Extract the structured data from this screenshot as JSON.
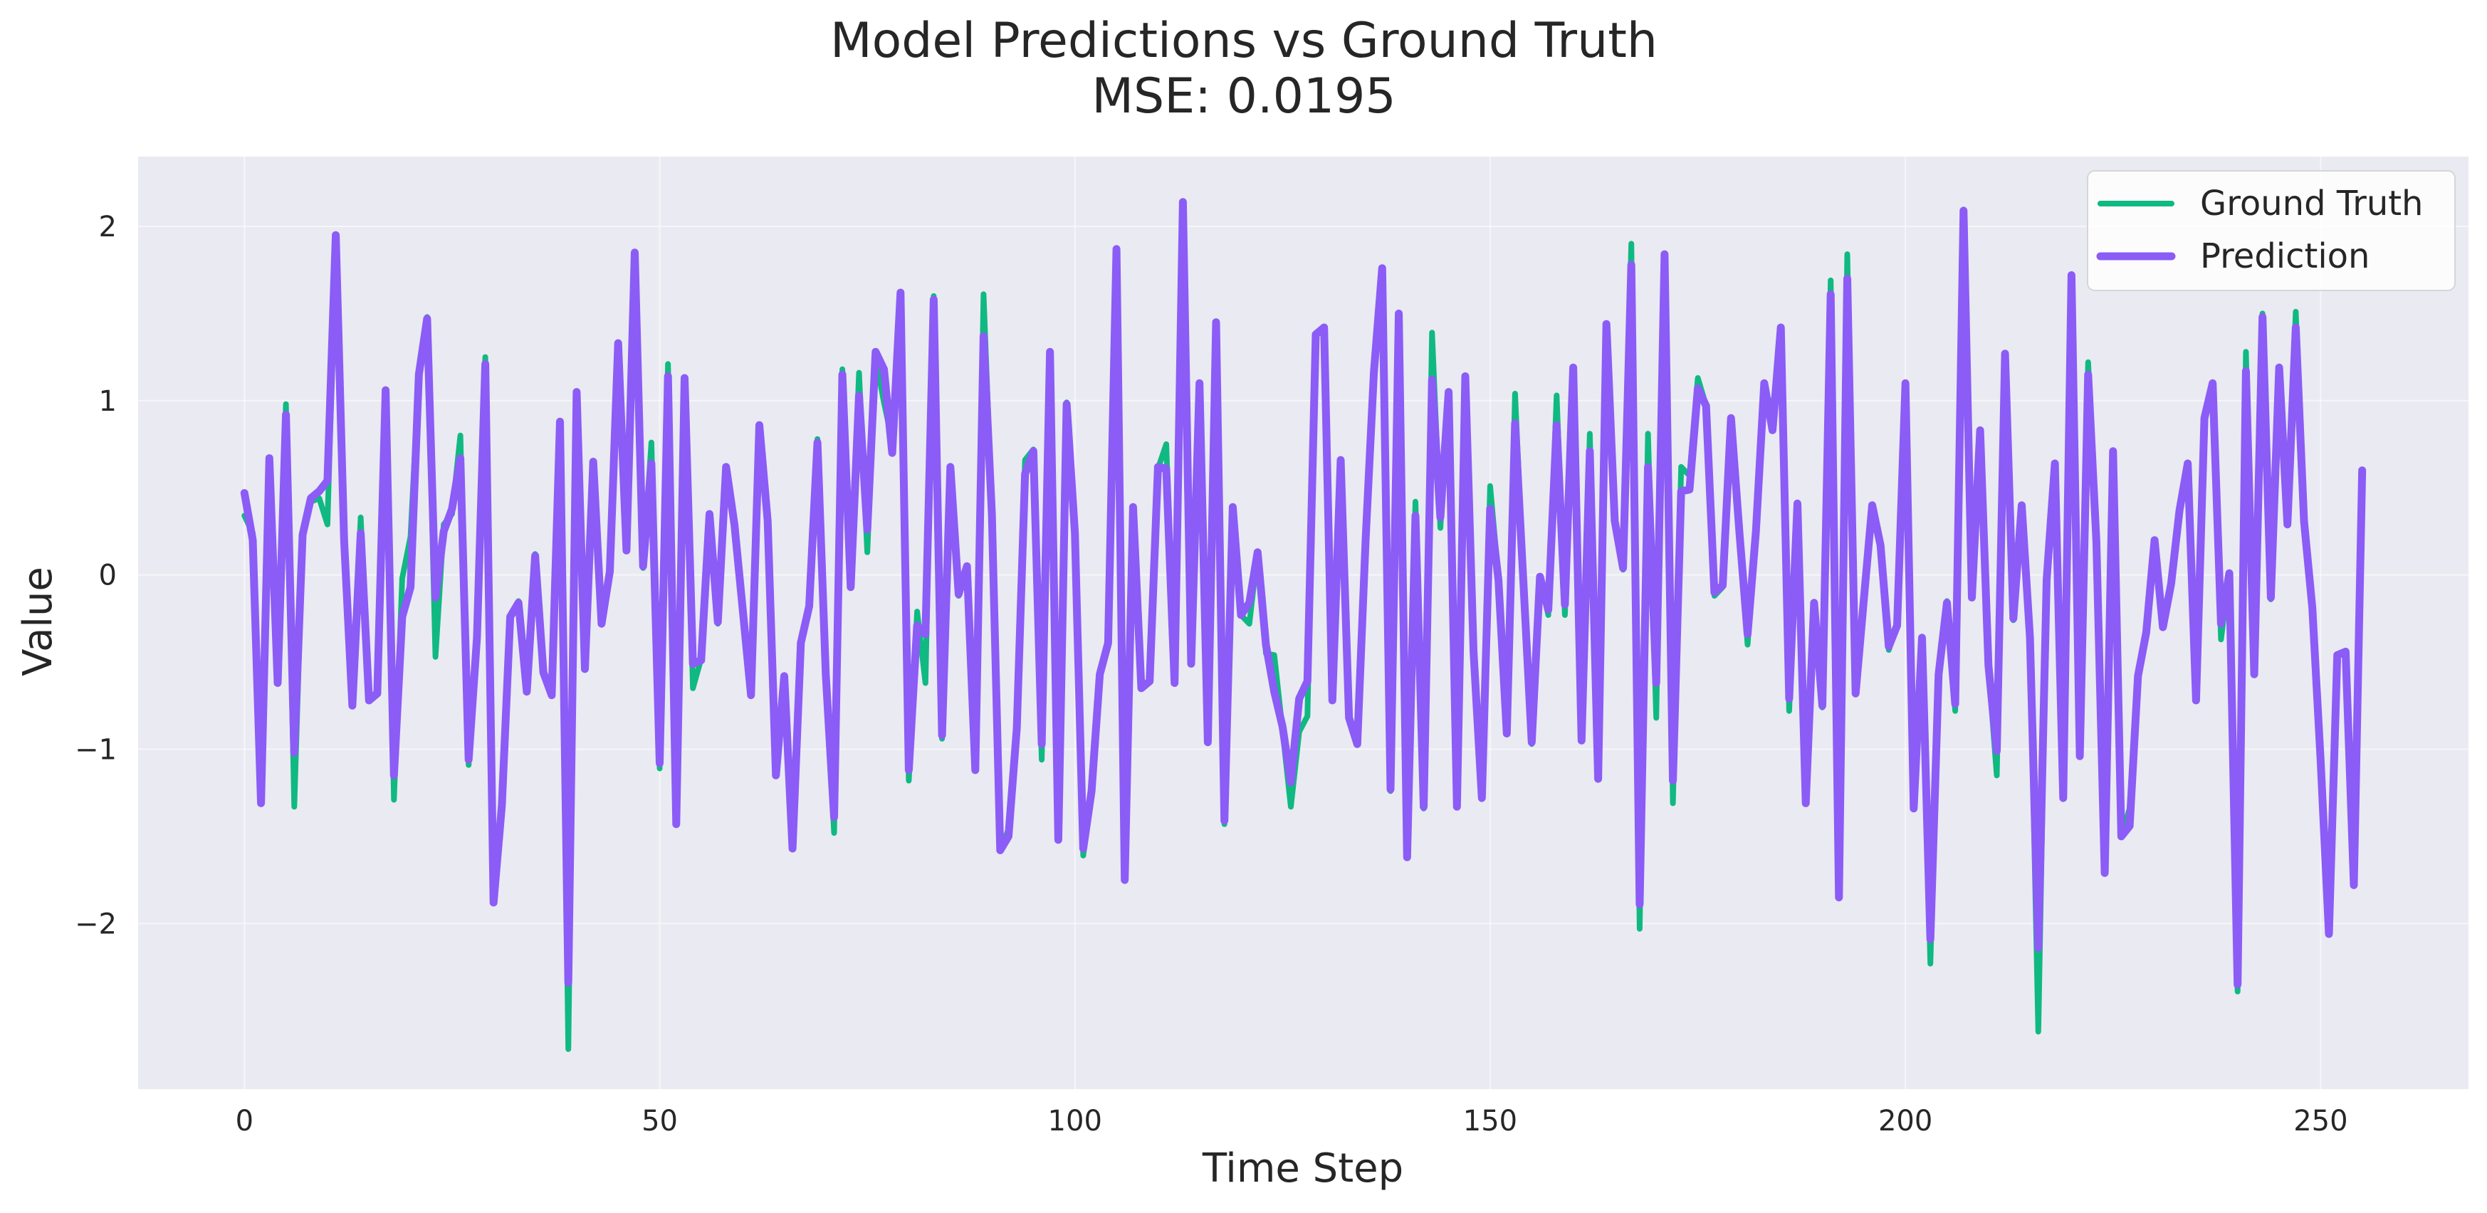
{
  "chart_data": {
    "type": "line",
    "title": "Model Predictions vs Ground Truth",
    "subtitle": "MSE: 0.0195",
    "xlabel": "Time Step",
    "ylabel": "Value",
    "xlim": [
      -12.8,
      267.8
    ],
    "ylim": [
      -2.95,
      2.4
    ],
    "xticks": [
      0,
      50,
      100,
      150,
      200,
      250
    ],
    "yticks": [
      -2,
      -1,
      0,
      1,
      2
    ],
    "ytick_labels": [
      "−2",
      "−1",
      "0",
      "1",
      "2"
    ],
    "grid": true,
    "legend_position": "top-right",
    "series": [
      {
        "name": "Ground Truth",
        "color": "#10b981",
        "values": [
          0.34,
          0.24,
          -1.3,
          0.65,
          -0.6,
          0.98,
          -1.33,
          0.22,
          0.42,
          0.44,
          0.29,
          1.93,
          0.21,
          -0.73,
          0.33,
          -0.71,
          -0.67,
          1.05,
          -1.29,
          -0.02,
          0.22,
          1.15,
          1.48,
          -0.47,
          0.29,
          0.35,
          0.8,
          -1.09,
          -0.3,
          1.25,
          -1.86,
          -1.32,
          -0.24,
          -0.15,
          -0.66,
          0.12,
          -0.55,
          -0.68,
          0.88,
          -2.72,
          1.05,
          -0.53,
          0.65,
          -0.27,
          0.01,
          1.33,
          0.16,
          1.84,
          0.04,
          0.76,
          -1.11,
          1.21,
          -1.42,
          1.13,
          -0.65,
          -0.48,
          0.34,
          -0.28,
          0.62,
          0.28,
          -0.2,
          -0.68,
          0.86,
          0.31,
          -1.14,
          -0.58,
          -1.56,
          -0.38,
          -0.17,
          0.78,
          -0.57,
          -1.48,
          1.18,
          -0.07,
          1.16,
          0.13,
          1.25,
          0.99,
          0.77,
          1.6,
          -1.18,
          -0.21,
          -0.62,
          1.6,
          -0.94,
          0.62,
          -0.12,
          0.04,
          -1.12,
          1.61,
          0.36,
          -1.58,
          -1.46,
          -0.89,
          0.66,
          0.72,
          -1.06,
          1.25,
          -1.52,
          0.99,
          0.24,
          -1.61,
          -1.24,
          -0.56,
          -0.38,
          1.86,
          -1.74,
          0.37,
          -0.64,
          -0.61,
          0.61,
          0.75,
          -0.62,
          2.12,
          -0.5,
          1.09,
          -0.96,
          1.44,
          -1.43,
          0.39,
          -0.23,
          -0.28,
          0.13,
          -0.45,
          -0.46,
          -0.89,
          -1.33,
          -0.9,
          -0.81,
          1.38,
          1.41,
          -0.72,
          0.66,
          -0.82,
          -0.96,
          0.2,
          1.15,
          1.74,
          -1.24,
          1.5,
          -1.61,
          0.42,
          -1.34,
          1.39,
          0.27,
          1.03,
          -1.33,
          1.13,
          -0.44,
          -1.28,
          0.51,
          -0.02,
          -0.91,
          1.04,
          -0.03,
          -0.97,
          -0.01,
          -0.23,
          1.03,
          -0.23,
          1.18,
          -0.95,
          0.81,
          -1.17,
          1.43,
          0.3,
          0.03,
          1.9,
          -2.03,
          0.81,
          -0.82,
          1.84,
          -1.31,
          0.62,
          0.57,
          1.13,
          0.97,
          -0.12,
          -0.07,
          0.9,
          0.25,
          -0.4,
          0.26,
          1.09,
          0.92,
          1.42,
          -0.78,
          0.39,
          -1.31,
          -0.17,
          -0.76,
          1.69,
          -1.84,
          1.84,
          -0.68,
          -0.14,
          0.39,
          0.16,
          -0.43,
          -0.29,
          1.1,
          -1.34,
          -0.36,
          -2.23,
          -0.56,
          -0.15,
          -0.78,
          2.08,
          -0.13,
          0.82,
          -0.53,
          -1.15,
          1.27,
          -0.26,
          0.4,
          -0.35,
          -2.62,
          -0.03,
          0.63,
          -1.28,
          1.71,
          -1.04,
          1.22,
          0.19,
          -1.71,
          0.71,
          -1.5,
          -1.34,
          -0.58,
          -0.34,
          0.2,
          -0.3,
          -0.05,
          0.38,
          0.64,
          -0.72,
          0.9,
          1.1,
          -0.37,
          0.01,
          -2.39,
          1.28,
          -0.57,
          1.5,
          -0.14,
          1.18,
          0.29,
          1.51,
          0.32,
          -0.19,
          -1.1,
          -2.05,
          -0.46,
          -0.44,
          -1.78,
          0.6
        ]
      },
      {
        "name": "Prediction",
        "color": "#8b5cf6",
        "values": [
          0.47,
          0.2,
          -1.31,
          0.67,
          -0.62,
          0.92,
          -1.02,
          0.23,
          0.44,
          0.48,
          0.54,
          1.95,
          0.2,
          -0.75,
          0.24,
          -0.72,
          -0.68,
          1.06,
          -1.15,
          -0.24,
          -0.07,
          1.15,
          1.47,
          -0.13,
          0.25,
          0.38,
          0.67,
          -1.06,
          -0.36,
          1.21,
          -1.88,
          -1.32,
          -0.24,
          -0.16,
          -0.67,
          0.11,
          -0.56,
          -0.69,
          0.88,
          -2.34,
          1.05,
          -0.54,
          0.65,
          -0.28,
          0.02,
          1.33,
          0.14,
          1.85,
          0.05,
          0.64,
          -1.08,
          1.14,
          -1.43,
          1.13,
          -0.51,
          -0.49,
          0.35,
          -0.27,
          0.62,
          0.29,
          -0.2,
          -0.69,
          0.86,
          0.31,
          -1.15,
          -0.58,
          -1.57,
          -0.39,
          -0.18,
          0.76,
          -0.57,
          -1.39,
          1.15,
          -0.07,
          1.03,
          0.26,
          1.28,
          1.18,
          0.7,
          1.62,
          -1.12,
          -0.29,
          -0.34,
          1.58,
          -0.92,
          0.62,
          -0.11,
          0.05,
          -1.12,
          1.37,
          0.35,
          -1.58,
          -1.5,
          -0.88,
          0.58,
          0.71,
          -0.97,
          1.28,
          -1.52,
          0.98,
          0.24,
          -1.57,
          -1.24,
          -0.57,
          -0.39,
          1.87,
          -1.75,
          0.39,
          -0.65,
          -0.61,
          0.62,
          0.61,
          -0.62,
          2.14,
          -0.51,
          1.1,
          -0.96,
          1.45,
          -1.41,
          0.39,
          -0.23,
          -0.16,
          0.13,
          -0.4,
          -0.67,
          -0.87,
          -1.19,
          -0.71,
          -0.61,
          1.38,
          1.42,
          -0.72,
          0.66,
          -0.82,
          -0.97,
          0.2,
          1.16,
          1.76,
          -1.23,
          1.5,
          -1.62,
          0.34,
          -1.33,
          1.12,
          0.33,
          1.05,
          -1.33,
          1.14,
          -0.44,
          -1.28,
          0.38,
          -0.03,
          -0.91,
          0.87,
          -0.04,
          -0.96,
          -0.01,
          -0.2,
          0.86,
          -0.17,
          1.19,
          -0.95,
          0.71,
          -1.17,
          1.44,
          0.31,
          0.04,
          1.78,
          -1.89,
          0.62,
          -0.62,
          1.84,
          -1.18,
          0.48,
          0.49,
          1.07,
          0.97,
          -0.1,
          -0.06,
          0.9,
          0.25,
          -0.34,
          0.25,
          1.1,
          0.83,
          1.42,
          -0.71,
          0.41,
          -1.31,
          -0.16,
          -0.75,
          1.61,
          -1.85,
          1.7,
          -0.68,
          -0.14,
          0.4,
          0.17,
          -0.41,
          -0.29,
          1.1,
          -1.34,
          -0.36,
          -2.09,
          -0.57,
          -0.16,
          -0.74,
          2.09,
          -0.13,
          0.83,
          -0.52,
          -1.01,
          1.27,
          -0.25,
          0.4,
          -0.36,
          -2.14,
          -0.03,
          0.64,
          -1.28,
          1.72,
          -1.04,
          1.15,
          0.19,
          -1.71,
          0.71,
          -1.5,
          -1.44,
          -0.58,
          -0.33,
          0.2,
          -0.3,
          -0.05,
          0.37,
          0.64,
          -0.72,
          0.9,
          1.1,
          -0.28,
          0.01,
          -2.35,
          1.17,
          -0.57,
          1.48,
          -0.13,
          1.19,
          0.29,
          1.42,
          0.31,
          -0.19,
          -1.07,
          -2.06,
          -0.46,
          -0.44,
          -1.78,
          0.6
        ]
      }
    ]
  }
}
